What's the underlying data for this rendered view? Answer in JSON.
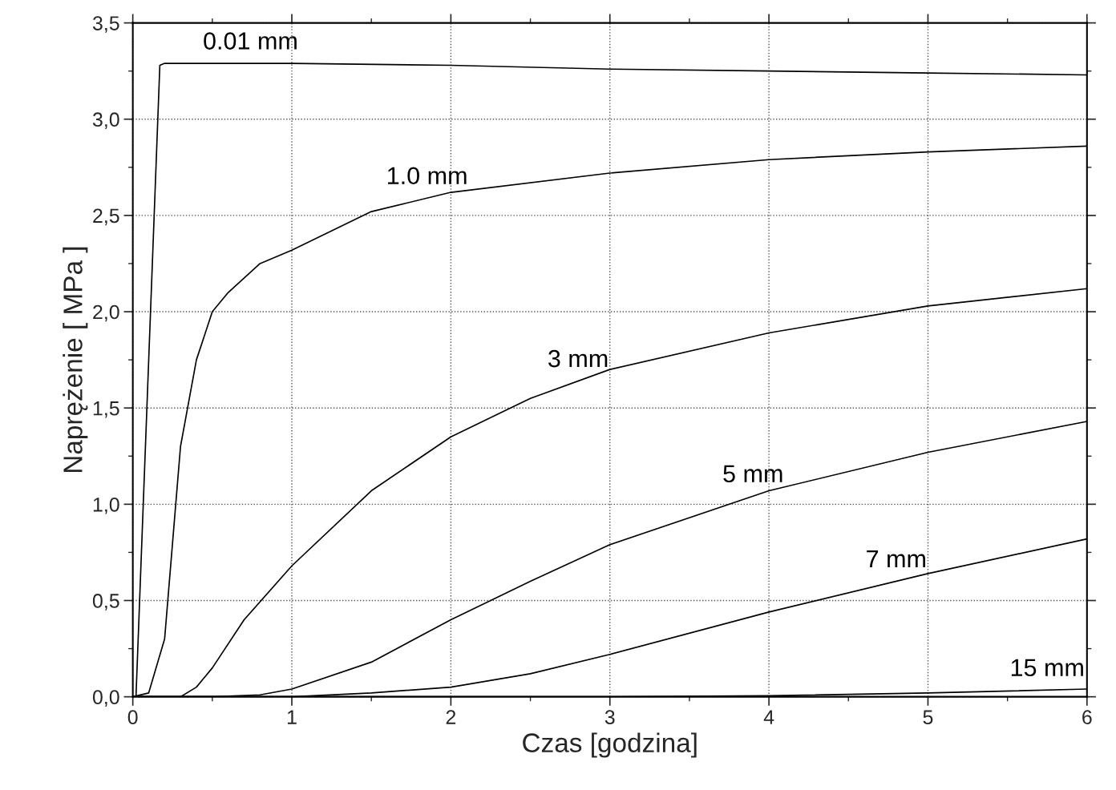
{
  "chart_data": {
    "type": "line",
    "xlabel": "Czas [godzina]",
    "ylabel": "Naprężenie [ MPa ]",
    "xlim": [
      0,
      6
    ],
    "ylim": [
      0,
      3.5
    ],
    "xticks": [
      0,
      1,
      2,
      3,
      4,
      5,
      6
    ],
    "yticks": [
      {
        "value": 0,
        "label": "0,0"
      },
      {
        "value": 0.5,
        "label": "0,5"
      },
      {
        "value": 1.0,
        "label": "1,0"
      },
      {
        "value": 1.5,
        "label": "1,5"
      },
      {
        "value": 2.0,
        "label": "2,0"
      },
      {
        "value": 2.5,
        "label": "2,5"
      },
      {
        "value": 3.0,
        "label": "3,0"
      },
      {
        "value": 3.5,
        "label": "3,5"
      }
    ],
    "grid": true,
    "legend": false,
    "marker": "none",
    "line_style": "solid",
    "series": [
      {
        "name": "0.01 mm",
        "color": "#000000",
        "x": [
          0,
          0.02,
          0.17,
          0.2,
          1,
          2,
          3,
          4,
          5,
          6
        ],
        "values": [
          0,
          0,
          3.28,
          3.29,
          3.29,
          3.28,
          3.26,
          3.25,
          3.24,
          3.23
        ]
      },
      {
        "name": "1.0 mm",
        "color": "#000000",
        "x": [
          0,
          0.1,
          0.2,
          0.25,
          0.3,
          0.4,
          0.5,
          0.6,
          0.8,
          1,
          1.5,
          2,
          3,
          4,
          5,
          6
        ],
        "values": [
          0,
          0.02,
          0.3,
          0.8,
          1.3,
          1.75,
          2.0,
          2.1,
          2.25,
          2.32,
          2.52,
          2.62,
          2.72,
          2.79,
          2.83,
          2.86
        ]
      },
      {
        "name": "3 mm",
        "color": "#000000",
        "x": [
          0,
          0.3,
          0.4,
          0.5,
          0.7,
          1,
          1.5,
          2,
          2.5,
          3,
          4,
          5,
          6
        ],
        "values": [
          0,
          0,
          0.05,
          0.15,
          0.4,
          0.68,
          1.07,
          1.35,
          1.55,
          1.7,
          1.89,
          2.03,
          2.12
        ]
      },
      {
        "name": "5 mm",
        "color": "#000000",
        "x": [
          0,
          0.5,
          0.8,
          1,
          1.5,
          2,
          2.5,
          3,
          4,
          5,
          6
        ],
        "values": [
          0,
          0,
          0.01,
          0.04,
          0.18,
          0.4,
          0.6,
          0.79,
          1.07,
          1.27,
          1.43
        ]
      },
      {
        "name": "7 mm",
        "color": "#000000",
        "x": [
          0,
          1,
          1.5,
          2,
          2.5,
          3,
          4,
          5,
          6
        ],
        "values": [
          0,
          0,
          0.02,
          0.05,
          0.12,
          0.22,
          0.44,
          0.64,
          0.82
        ]
      },
      {
        "name": "15 mm",
        "color": "#000000",
        "x": [
          0,
          3,
          4,
          5,
          6
        ],
        "values": [
          0,
          0,
          0.005,
          0.02,
          0.04
        ]
      }
    ]
  }
}
